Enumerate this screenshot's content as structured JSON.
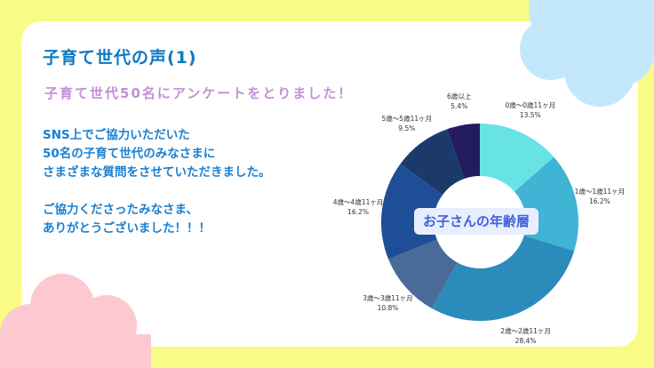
{
  "title": "子育て世代の声(1)",
  "subtitle": "子育て世代50名にアンケートをとりました！",
  "body": [
    "SNS上でご協力いただいた",
    "50名の子育て世代のみなさまに",
    "さまざまな質問をさせていただきました。",
    "ご協力くださったみなさま、",
    "ありがとうございました！！！"
  ],
  "colors": {
    "background": "#fafa86",
    "card": "#ffffff",
    "cloud_blue": "#c4e8fb",
    "cloud_pink": "#fdc9d0"
  },
  "chart_data": {
    "type": "pie",
    "donut": true,
    "title": "お子さんの年齢層",
    "categories": [
      "0歳〜0歳11ヶ月",
      "1歳〜1歳11ヶ月",
      "2歳〜2歳11ヶ月",
      "3歳〜3歳11ヶ月",
      "4歳〜4歳11ヶ月",
      "5歳〜5歳11ヶ月",
      "6歳以上"
    ],
    "values": [
      13.5,
      16.2,
      28.4,
      10.8,
      16.2,
      9.5,
      5.4
    ],
    "value_labels": [
      "13.5%",
      "16.2%",
      "28.4%",
      "10.8%",
      "16.2%",
      "9.5%",
      "5.4%"
    ],
    "colors": [
      "#67e3e6",
      "#3fb4d4",
      "#2b8bbb",
      "#4a6a98",
      "#1e4e96",
      "#1b3a6a",
      "#221b5e"
    ]
  }
}
